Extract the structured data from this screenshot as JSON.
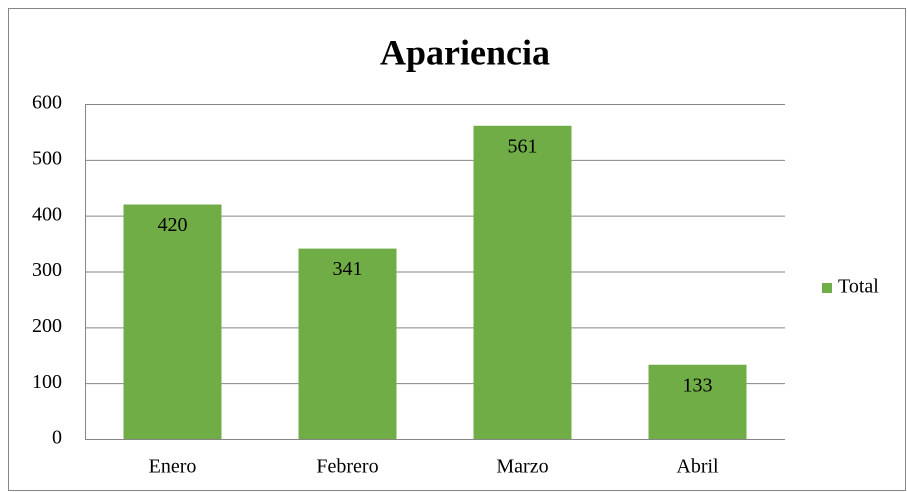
{
  "chart_data": {
    "type": "bar",
    "title": "Apariencia",
    "categories": [
      "Enero",
      "Febrero",
      "Marzo",
      "Abril"
    ],
    "series": [
      {
        "name": "Total",
        "color": "#70ad47",
        "values": [
          420,
          341,
          561,
          133
        ]
      }
    ],
    "ylim": [
      0,
      600
    ],
    "yticks": [
      0,
      100,
      200,
      300,
      400,
      500,
      600
    ],
    "grid": true,
    "legend": "right",
    "data_labels": true
  }
}
